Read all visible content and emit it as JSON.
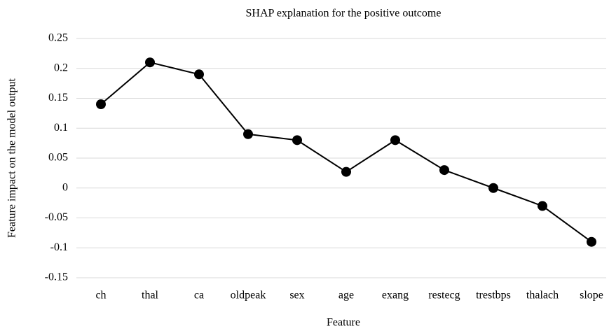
{
  "chart_data": {
    "type": "line",
    "title": "SHAP explanation for the positive outcome",
    "x_label": "Feature",
    "y_label": "Feature impact on the model output",
    "categories": [
      "ch",
      "thal",
      "ca",
      "oldpeak",
      "sex",
      "age",
      "exang",
      "restecg",
      "trestbps",
      "thalach",
      "slope"
    ],
    "values": [
      0.14,
      0.21,
      0.19,
      0.09,
      0.08,
      0.027,
      0.08,
      0.03,
      0,
      -0.03,
      -0.09
    ],
    "color": "#000000",
    "ylim": [
      -0.15,
      0.25
    ],
    "yticks": [
      -0.15,
      -0.1,
      -0.05,
      0,
      0.05,
      0.1,
      0.15,
      0.2,
      0.25
    ],
    "grid": true
  }
}
